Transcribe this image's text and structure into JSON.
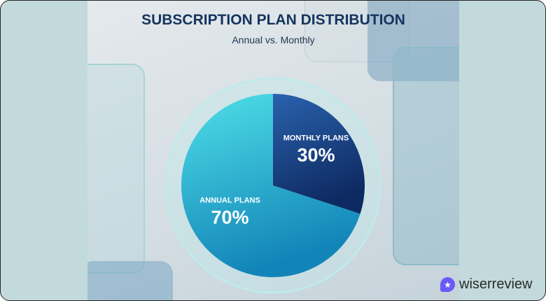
{
  "chart_data": {
    "type": "pie",
    "title": "SUBSCRIPTION PLAN DISTRIBUTION",
    "subtitle": "Annual vs. Monthly",
    "slices": [
      {
        "label": "MONTHLY PLANS",
        "value": 30,
        "value_label": "30%",
        "color": "#1a4a8c"
      },
      {
        "label": "ANNUAL PLANS",
        "value": 70,
        "value_label": "70%",
        "color": "#26b3d6"
      }
    ],
    "legend": "none"
  },
  "brand": {
    "name": "wiserreview",
    "icon": "star-icon",
    "color": "#6a5af9"
  }
}
